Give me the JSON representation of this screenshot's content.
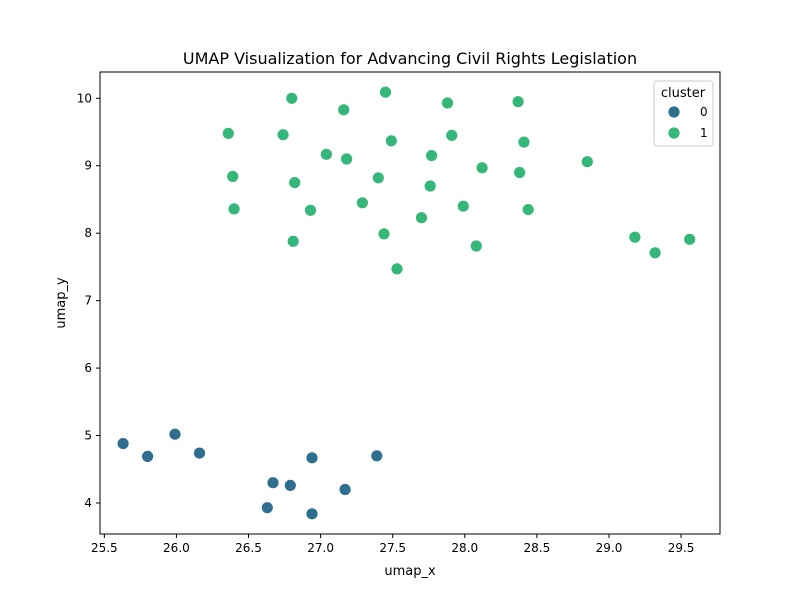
{
  "chart_data": {
    "type": "scatter",
    "title": "UMAP Visualization for Advancing Civil Rights Legislation",
    "xlabel": "umap_x",
    "ylabel": "umap_y",
    "xlim": [
      25.47,
      29.77
    ],
    "ylim": [
      3.54,
      10.39
    ],
    "xticks": [
      25.5,
      26.0,
      26.5,
      27.0,
      27.5,
      28.0,
      28.5,
      29.0,
      29.5
    ],
    "xtick_labels": [
      "25.5",
      "26.0",
      "26.5",
      "27.0",
      "27.5",
      "28.0",
      "28.5",
      "29.0",
      "29.5"
    ],
    "yticks": [
      4,
      5,
      6,
      7,
      8,
      9,
      10
    ],
    "ytick_labels": [
      "4",
      "5",
      "6",
      "7",
      "8",
      "9",
      "10"
    ],
    "grid": false,
    "legend": {
      "title": "cluster",
      "placement": "top-right",
      "entries": [
        {
          "label": "0",
          "color": "#2f6e8e"
        },
        {
          "label": "1",
          "color": "#35b779"
        }
      ]
    },
    "series": [
      {
        "name": "0",
        "color": "#2f6e8e",
        "points": [
          [
            25.63,
            4.88
          ],
          [
            25.8,
            4.69
          ],
          [
            25.99,
            5.02
          ],
          [
            26.16,
            4.74
          ],
          [
            26.63,
            3.93
          ],
          [
            26.67,
            4.3
          ],
          [
            26.79,
            4.26
          ],
          [
            26.94,
            4.67
          ],
          [
            26.94,
            3.84
          ],
          [
            27.17,
            4.2
          ],
          [
            27.39,
            4.7
          ]
        ]
      },
      {
        "name": "1",
        "color": "#35b779",
        "points": [
          [
            26.36,
            9.48
          ],
          [
            26.39,
            8.84
          ],
          [
            26.4,
            8.36
          ],
          [
            26.74,
            9.46
          ],
          [
            26.8,
            10.0
          ],
          [
            26.82,
            8.75
          ],
          [
            26.81,
            7.88
          ],
          [
            26.93,
            8.34
          ],
          [
            27.04,
            9.17
          ],
          [
            27.16,
            9.83
          ],
          [
            27.18,
            9.1
          ],
          [
            27.29,
            8.45
          ],
          [
            27.4,
            8.82
          ],
          [
            27.45,
            10.09
          ],
          [
            27.44,
            7.99
          ],
          [
            27.49,
            9.37
          ],
          [
            27.53,
            7.47
          ],
          [
            27.7,
            8.23
          ],
          [
            27.76,
            8.7
          ],
          [
            27.77,
            9.15
          ],
          [
            27.88,
            9.93
          ],
          [
            27.91,
            9.45
          ],
          [
            27.99,
            8.4
          ],
          [
            28.08,
            7.81
          ],
          [
            28.12,
            8.97
          ],
          [
            28.37,
            9.95
          ],
          [
            28.38,
            8.9
          ],
          [
            28.41,
            9.35
          ],
          [
            28.44,
            8.35
          ],
          [
            28.85,
            9.06
          ],
          [
            29.18,
            7.94
          ],
          [
            29.32,
            7.71
          ],
          [
            29.56,
            7.91
          ]
        ]
      }
    ]
  }
}
